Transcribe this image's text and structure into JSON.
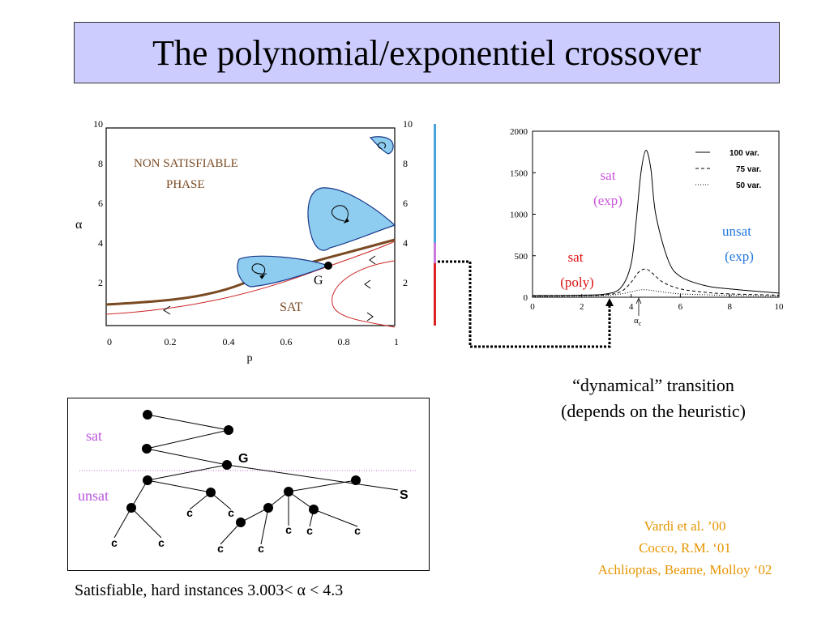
{
  "slide": {
    "title": "The polynomial/exponentiel crossover",
    "caption": "Satisfiable, hard instances  3.003< α < 4.3",
    "dynamical_note_line1": "“dynamical” transition",
    "dynamical_note_line2": "(depends on the heuristic)",
    "references": [
      "Vardi et al. ’00",
      "Cocco, R.M. ‘01",
      "Achlioptas, Beame, Molloy ‘02"
    ]
  },
  "phase_diagram": {
    "ylabel": "α",
    "xlabel": "p",
    "xticks": [
      "0",
      "0.2",
      "0.4",
      "0.6",
      "0.8",
      "1"
    ],
    "yticks_left": [
      "2",
      "4",
      "6",
      "8",
      "10"
    ],
    "yticks_right": [
      "2",
      "4",
      "6",
      "8",
      "10"
    ],
    "label_nonsat_line1": "NON SATISFIABLE",
    "label_nonsat_line2": "PHASE",
    "label_sat": "SAT",
    "label_G": "G",
    "colors": {
      "boundary": "#7a4a22",
      "trajectory": "#cc2222",
      "basin_fill": "#8ecdf0",
      "basin_stroke": "#1a3a8a",
      "label_brown": "#7a4a22"
    }
  },
  "side_bar": {
    "colors": {
      "upper": "#4aa3e0",
      "middle": "#cc77dd",
      "lower": "#dd2222"
    }
  },
  "complexity_chart": {
    "xticks": [
      "0",
      "2",
      "4",
      "6",
      "8",
      "10"
    ],
    "yticks": [
      "0",
      "500",
      "1000",
      "1500",
      "2000"
    ],
    "x_marker_label": "α",
    "x_marker_sub": "c",
    "legend": [
      "100 var.",
      "75 var.",
      "50 var."
    ],
    "region_sat_exp": [
      "sat",
      "(exp)"
    ],
    "region_unsat_exp": [
      "unsat",
      "(exp)"
    ],
    "region_sat_poly": [
      "sat",
      "(poly)"
    ],
    "colors": {
      "sat_exp": "#cc55dd",
      "unsat_exp": "#2277dd",
      "sat_poly": "#dd1111"
    }
  },
  "chart_data": {
    "type": "line",
    "xlim": [
      0,
      10
    ],
    "ylim": [
      0,
      2000
    ],
    "legend_position": "top-right",
    "series": [
      {
        "name": "100 var.",
        "x": [
          0,
          2,
          3,
          3.6,
          4,
          4.2,
          4.4,
          4.6,
          4.8,
          5,
          5.5,
          6,
          7,
          8,
          10
        ],
        "y": [
          20,
          25,
          40,
          120,
          400,
          900,
          1500,
          1770,
          1550,
          1000,
          450,
          250,
          140,
          100,
          50
        ]
      },
      {
        "name": "75 var.",
        "x": [
          0,
          2,
          3,
          3.6,
          4,
          4.3,
          4.6,
          4.9,
          5.3,
          6,
          7,
          8,
          10
        ],
        "y": [
          15,
          20,
          30,
          70,
          180,
          300,
          340,
          280,
          180,
          100,
          60,
          40,
          25
        ]
      },
      {
        "name": "50 var.",
        "x": [
          0,
          2,
          3,
          3.6,
          4,
          4.3,
          4.6,
          5,
          5.5,
          6,
          7,
          8,
          10
        ],
        "y": [
          10,
          15,
          22,
          40,
          65,
          85,
          90,
          75,
          55,
          40,
          30,
          22,
          15
        ]
      }
    ]
  },
  "search_tree": {
    "label_sat": "sat",
    "label_unsat": "unsat",
    "label_G": "G",
    "label_S": "S",
    "leaf_label": "c",
    "colors": {
      "region_label": "#bb55dd",
      "divider": "#cc66dd"
    }
  }
}
